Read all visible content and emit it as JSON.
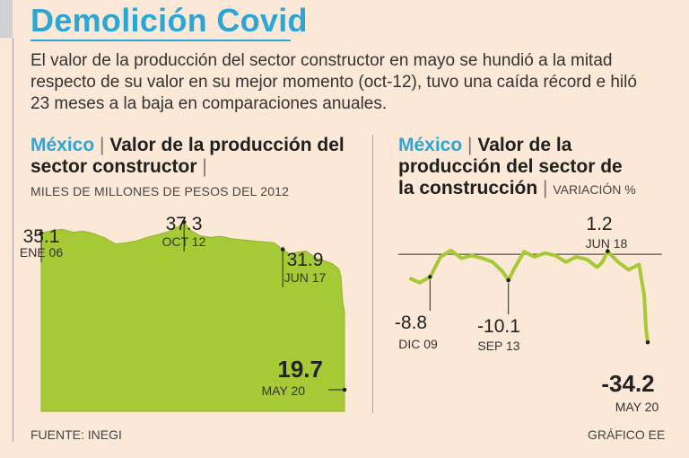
{
  "header": {
    "title": "Demolición Covid",
    "intro": "El valor de la producción del sector constructor en mayo se hundió a la mitad respecto de su valor en su mejor momento (oct-12), tuvo una caída récord e hiló 23 meses a la baja en comparaciones anuales."
  },
  "left_chart": {
    "country": "México",
    "title": "Valor de la producción del sector constructor",
    "subtitle": "MILES DE MILLONES DE PESOS DEL 2012"
  },
  "right_chart": {
    "country": "México",
    "title_line1": "Valor de la",
    "title_line2": "producción del sector de",
    "title_line3": "la construcción",
    "unit": "VARIACIÓN %"
  },
  "footer": {
    "source": "FUENTE: INEGI",
    "credit": "GRÁFICO EE"
  },
  "colors": {
    "accent": "#2aa7d6",
    "series": "#a6c936",
    "background": "#fbe8d7"
  },
  "chart_data": [
    {
      "type": "area",
      "ylabel": "MILES DE MILLONES DE PESOS DEL 2012",
      "xlim": [
        "2006-01",
        "2020-05"
      ],
      "ylim": [
        0,
        40
      ],
      "grid": false,
      "series": [
        {
          "x": [
            "2006-01",
            "2006-07",
            "2007-01",
            "2007-07",
            "2008-01",
            "2008-07",
            "2009-01",
            "2009-07",
            "2010-01",
            "2010-07",
            "2011-01",
            "2011-07",
            "2012-01",
            "2012-07",
            "2012-10",
            "2013-01",
            "2013-07",
            "2014-01",
            "2014-07",
            "2015-01",
            "2015-07",
            "2016-01",
            "2016-07",
            "2017-01",
            "2017-06",
            "2017-10",
            "2018-01",
            "2018-07",
            "2019-01",
            "2019-07",
            "2019-10",
            "2020-01",
            "2020-02",
            "2020-03",
            "2020-04",
            "2020-05"
          ],
          "values": [
            35.1,
            35.6,
            35.9,
            35.3,
            35.5,
            35.0,
            34.2,
            33.0,
            33.2,
            33.6,
            34.3,
            34.8,
            35.4,
            36.4,
            37.3,
            35.8,
            34.6,
            34.3,
            34.5,
            34.0,
            33.8,
            33.6,
            33.4,
            33.2,
            31.9,
            31.0,
            31.3,
            31.6,
            30.2,
            29.5,
            29.1,
            28.3,
            27.9,
            26.5,
            21.5,
            19.7
          ]
        }
      ],
      "annotations": [
        {
          "label": "35.1",
          "date_label": "ENE 06",
          "x": "2006-01",
          "y": 35.1
        },
        {
          "label": "37.3",
          "date_label": "OCT 12",
          "x": "2012-10",
          "y": 37.3
        },
        {
          "label": "31.9",
          "date_label": "JUN 17",
          "x": "2017-06",
          "y": 31.9
        },
        {
          "label": "19.7",
          "date_label": "MAY 20",
          "x": "2020-05",
          "y": 19.7
        }
      ]
    },
    {
      "type": "line",
      "ylabel": "VARIACIÓN %",
      "xlim": [
        "2009-01",
        "2020-05"
      ],
      "ylim": [
        -38,
        6
      ],
      "reference_line": 0,
      "grid": false,
      "series": [
        {
          "x": [
            "2009-01",
            "2009-06",
            "2009-12",
            "2010-06",
            "2010-12",
            "2011-06",
            "2011-12",
            "2012-06",
            "2012-12",
            "2013-03",
            "2013-06",
            "2013-09",
            "2013-12",
            "2014-06",
            "2014-12",
            "2015-06",
            "2015-12",
            "2016-06",
            "2016-12",
            "2017-06",
            "2017-12",
            "2018-03",
            "2018-06",
            "2018-09",
            "2018-12",
            "2019-06",
            "2019-12",
            "2020-01",
            "2020-02",
            "2020-03",
            "2020-04",
            "2020-05"
          ],
          "values": [
            -9.5,
            -11.0,
            -8.8,
            -1.0,
            1.5,
            -1.5,
            -0.5,
            -1.5,
            -3.0,
            -5.0,
            -7.0,
            -10.1,
            -6.0,
            1.0,
            -1.0,
            0.5,
            -0.5,
            -3.0,
            -1.0,
            -2.0,
            -5.0,
            -3.0,
            1.2,
            -1.0,
            -3.0,
            -6.0,
            -4.0,
            -8.0,
            -12.0,
            -16.0,
            -29.0,
            -34.2
          ]
        }
      ],
      "annotations": [
        {
          "label": "-8.8",
          "date_label": "DIC 09",
          "x": "2009-12",
          "y": -8.8
        },
        {
          "label": "-10.1",
          "date_label": "SEP 13",
          "x": "2013-09",
          "y": -10.1
        },
        {
          "label": "1.2",
          "date_label": "JUN 18",
          "x": "2018-06",
          "y": 1.2
        },
        {
          "label": "-34.2",
          "date_label": "MAY 20",
          "x": "2020-05",
          "y": -34.2
        }
      ]
    }
  ]
}
